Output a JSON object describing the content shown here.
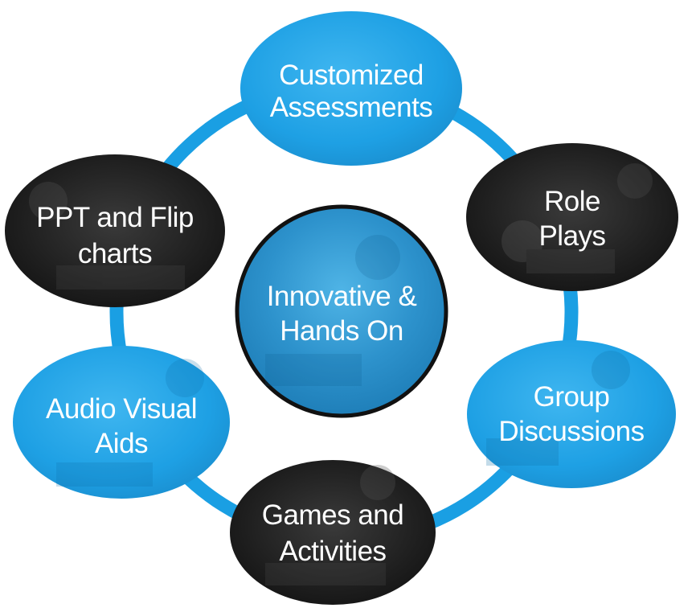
{
  "diagram": {
    "center": {
      "line1": "Innovative &",
      "line2": "Hands On"
    },
    "nodes": {
      "customized_assessments": {
        "line1": "Customized",
        "line2": "Assessments"
      },
      "role_plays": {
        "line1": "Role",
        "line2": "Plays"
      },
      "group_discussions": {
        "line1": "Group",
        "line2": "Discussions"
      },
      "games_activities": {
        "line1": "Games and",
        "line2": "Activities"
      },
      "audio_visual_aids": {
        "line1": "Audio Visual",
        "line2": "Aids"
      },
      "ppt_flip_charts": {
        "line1": "PPT and Flip",
        "line2": "charts"
      }
    },
    "colors": {
      "ring": "#1a9fe3",
      "blue_node": "#1da2e6",
      "dark_node": "#222222",
      "text": "#ffffff",
      "center_border": "#111111"
    }
  }
}
